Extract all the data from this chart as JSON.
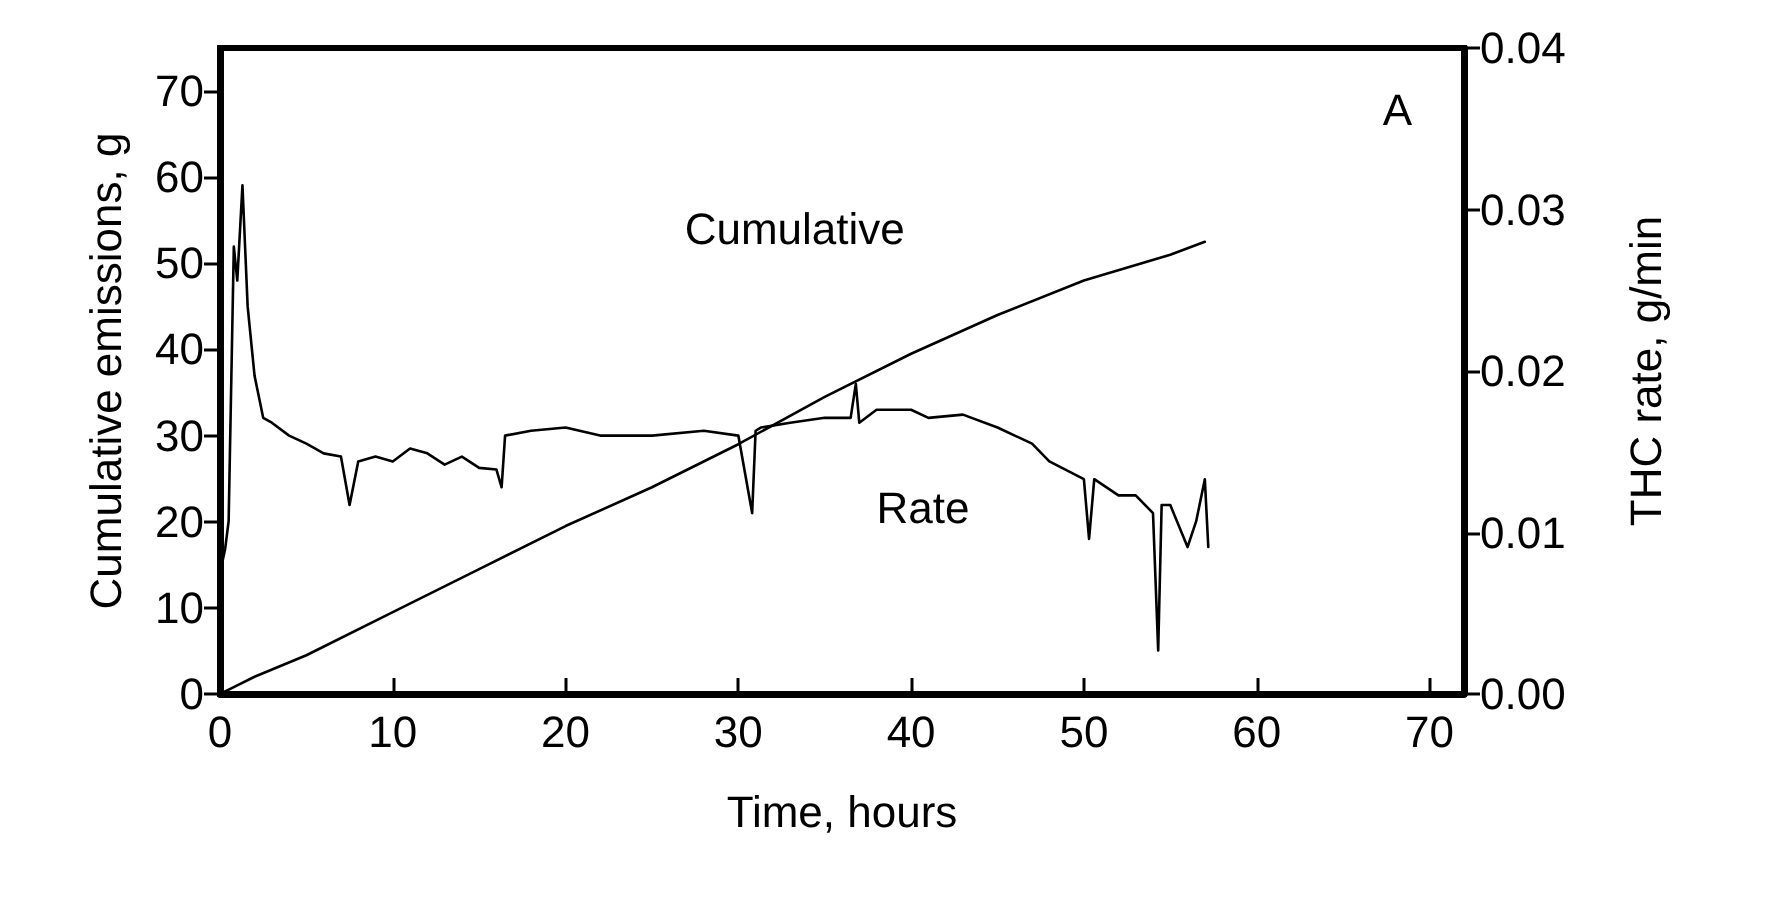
{
  "chart_data": {
    "type": "line",
    "xlabel": "Time, hours",
    "ylabel": "Cumulative emissions, g",
    "y2label": "THC rate, g/min",
    "annotations": [
      "A"
    ],
    "xlim": [
      0,
      72
    ],
    "xticks": [
      0,
      10,
      20,
      30,
      40,
      50,
      60,
      70
    ],
    "ylim": [
      0,
      75
    ],
    "yticks": [
      0,
      10,
      20,
      30,
      40,
      50,
      60,
      70
    ],
    "y2lim": [
      0,
      0.04
    ],
    "y2ticks": [
      {
        "value": 0,
        "label": "0.00"
      },
      {
        "value": 0.01,
        "label": "0.01"
      },
      {
        "value": 0.02,
        "label": "0.02"
      },
      {
        "value": 0.03,
        "label": "0.03"
      },
      {
        "value": 0.04,
        "label": "0.04"
      }
    ],
    "grid": false,
    "legend": false,
    "marker": "none",
    "line_style": "solid",
    "series": [
      {
        "name": "Cumulative",
        "color": "#000000",
        "x": [
          0,
          1,
          2,
          5,
          10,
          15,
          20,
          25,
          30,
          35,
          40,
          45,
          50,
          55,
          57
        ],
        "values": [
          0,
          1,
          2,
          4.5,
          9.5,
          14.5,
          19.5,
          24,
          29,
          34.5,
          39.5,
          44,
          48,
          51,
          52.5
        ]
      },
      {
        "name": "Rate",
        "color": "#000000",
        "axis": "y2",
        "x": [
          0,
          0.3,
          0.5,
          0.8,
          1.0,
          1.3,
          1.6,
          2,
          2.5,
          3,
          4,
          5,
          6,
          7,
          7.5,
          8,
          9,
          10,
          11,
          12,
          13,
          14,
          15,
          16,
          16.3,
          16.5,
          18,
          20,
          22,
          25,
          28,
          30,
          30.8,
          31,
          31.3,
          33,
          35,
          36.5,
          36.8,
          37,
          38,
          40,
          41,
          43,
          45,
          47,
          48,
          50,
          50.3,
          50.6,
          52,
          53,
          54,
          54.3,
          54.5,
          55,
          56,
          56.5,
          57,
          57.2
        ],
        "values": [
          0.0075,
          0.009,
          0.0107,
          0.0277,
          0.0256,
          0.0315,
          0.024,
          0.0197,
          0.0171,
          0.0168,
          0.016,
          0.0155,
          0.0149,
          0.0147,
          0.0117,
          0.0144,
          0.0147,
          0.0144,
          0.0152,
          0.0149,
          0.0142,
          0.0147,
          0.014,
          0.0139,
          0.0128,
          0.016,
          0.0163,
          0.0165,
          0.016,
          0.016,
          0.0163,
          0.016,
          0.0112,
          0.0163,
          0.0165,
          0.0168,
          0.0171,
          0.0171,
          0.0192,
          0.0168,
          0.0176,
          0.0176,
          0.0171,
          0.0173,
          0.0165,
          0.0155,
          0.0144,
          0.0133,
          0.0096,
          0.0133,
          0.0123,
          0.0123,
          0.0112,
          0.0027,
          0.0117,
          0.0117,
          0.0091,
          0.0107,
          0.0133,
          0.0091
        ]
      }
    ]
  }
}
